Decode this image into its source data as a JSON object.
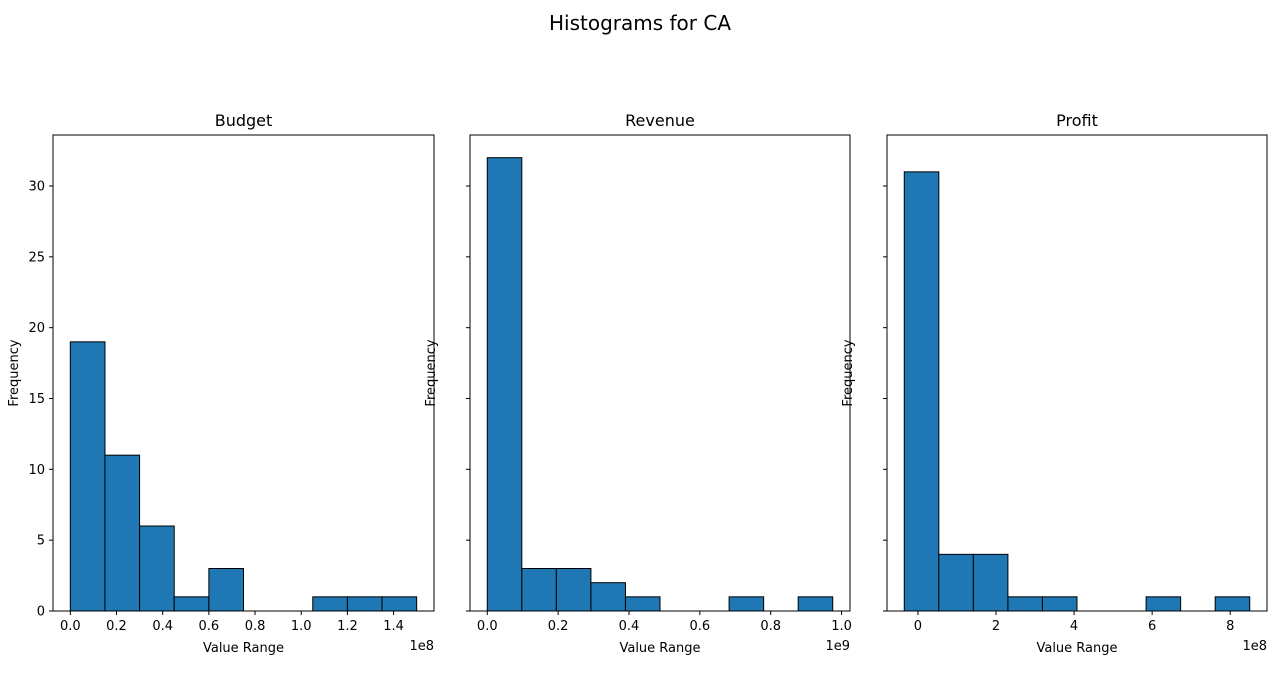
{
  "figure": {
    "title": "Histograms for CA"
  },
  "chart_data": [
    {
      "type": "bar",
      "title": "Budget",
      "xlabel": "Value Range",
      "ylabel": "Frequency",
      "offset_label": "1e8",
      "bin_edges": [
        0.0,
        0.15,
        0.3,
        0.45,
        0.6,
        0.75,
        0.9,
        1.05,
        1.2,
        1.35,
        1.5
      ],
      "values": [
        19,
        11,
        6,
        1,
        3,
        0,
        0,
        1,
        1,
        1
      ],
      "xlim": [
        -0.075,
        1.575
      ],
      "ylim": [
        0,
        33.6
      ],
      "x_ticks": [
        0.0,
        0.2,
        0.4,
        0.6,
        0.8,
        1.0,
        1.2,
        1.4
      ],
      "x_tick_labels": [
        "0.0",
        "0.2",
        "0.4",
        "0.6",
        "0.8",
        "1.0",
        "1.2",
        "1.4"
      ],
      "y_ticks": [
        0,
        5,
        10,
        15,
        20,
        25,
        30
      ],
      "y_tick_labels": [
        "0",
        "5",
        "10",
        "15",
        "20",
        "25",
        "30"
      ],
      "color": "#1f77b4",
      "edge_color": "#000000"
    },
    {
      "type": "bar",
      "title": "Revenue",
      "xlabel": "Value Range",
      "ylabel": "Frequency",
      "offset_label": "1e9",
      "bin_edges": [
        0.0,
        0.0975,
        0.195,
        0.2925,
        0.39,
        0.4875,
        0.585,
        0.6825,
        0.78,
        0.8775,
        0.975
      ],
      "values": [
        32,
        3,
        3,
        2,
        1,
        0,
        0,
        1,
        0,
        1
      ],
      "xlim": [
        -0.04875,
        1.02375
      ],
      "ylim": [
        0,
        33.6
      ],
      "x_ticks": [
        0.0,
        0.2,
        0.4,
        0.6,
        0.8,
        1.0
      ],
      "x_tick_labels": [
        "0.0",
        "0.2",
        "0.4",
        "0.6",
        "0.8",
        "1.0"
      ],
      "y_ticks": [
        0,
        5,
        10,
        15,
        20,
        25,
        30
      ],
      "color": "#1f77b4",
      "edge_color": "#000000"
    },
    {
      "type": "bar",
      "title": "Profit",
      "xlabel": "Value Range",
      "ylabel": "Frequency",
      "offset_label": "1e8",
      "bin_edges": [
        -0.35,
        0.535,
        1.42,
        2.305,
        3.19,
        4.075,
        4.96,
        5.845,
        6.73,
        7.615,
        8.5
      ],
      "values": [
        31,
        4,
        4,
        1,
        1,
        0,
        0,
        1,
        0,
        1
      ],
      "xlim": [
        -0.7925,
        8.9425
      ],
      "ylim": [
        0,
        33.6
      ],
      "x_ticks": [
        0,
        2,
        4,
        6,
        8
      ],
      "x_tick_labels": [
        "0",
        "2",
        "4",
        "6",
        "8"
      ],
      "y_ticks": [
        0,
        5,
        10,
        15,
        20,
        25,
        30
      ],
      "color": "#1f77b4",
      "edge_color": "#000000"
    }
  ]
}
